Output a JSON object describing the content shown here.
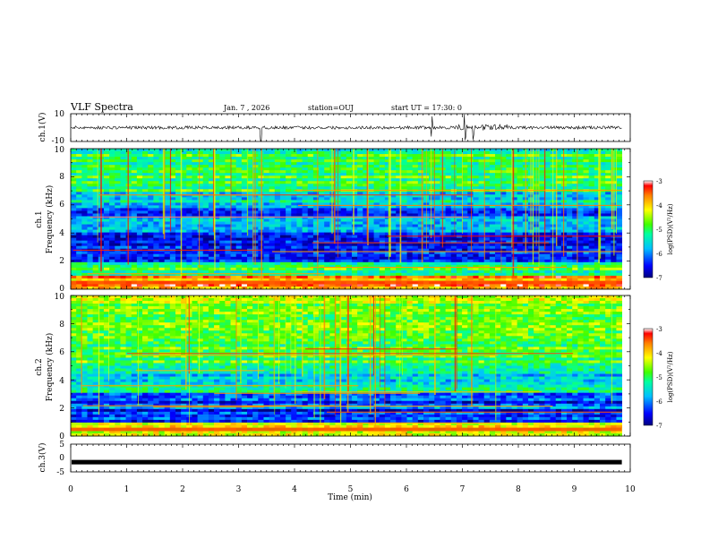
{
  "header": {
    "title": "VLF Spectra",
    "date": "Jan. 7 , 2026",
    "station": "station=OUJ",
    "start_ut": "start UT = 17:30: 0"
  },
  "colors": {
    "spectrum_low": "#000080",
    "spectrum_mid": "#00ff40",
    "spectrum_high": "#ff0000",
    "trace": "#000000"
  },
  "chart_data": [
    {
      "type": "line",
      "name": "ch1-waveform",
      "ylabel": "ch.1(V)",
      "ylim": [
        -10,
        10
      ],
      "y_ticklabels": [
        "10",
        "-10"
      ],
      "xlim": [
        0,
        10
      ],
      "baseline": 0,
      "spikes_at_min": [
        3.4,
        6.45,
        7.05,
        7.2
      ]
    },
    {
      "type": "heatmap",
      "name": "ch1-spectrogram",
      "ylabel": [
        "ch.1",
        "Frequency (kHz)"
      ],
      "ylim": [
        0,
        10
      ],
      "y_ticklabels": [
        "0",
        "2",
        "4",
        "6",
        "8",
        "10"
      ],
      "xlim": [
        0,
        10
      ],
      "freq_bands_khz": [
        0,
        1,
        2,
        3,
        4,
        5,
        6,
        7,
        8,
        9,
        10
      ],
      "log_psd_profile": [
        -3.6,
        -5.0,
        -6.6,
        -6.4,
        -5.6,
        -6.1,
        -5.6,
        -5.0,
        -5.0,
        -5.1
      ],
      "colorbar": {
        "label": "log(PSD)(V²/Hz)",
        "range": [
          -7,
          -3
        ],
        "ticklabels": [
          "-3",
          "-4",
          "-5",
          "-6",
          "-7"
        ]
      }
    },
    {
      "type": "heatmap",
      "name": "ch2-spectrogram",
      "ylabel": [
        "ch.2",
        "Frequency (kHz)"
      ],
      "ylim": [
        0,
        10
      ],
      "y_ticklabels": [
        "0",
        "2",
        "4",
        "6",
        "8",
        "10"
      ],
      "xlim": [
        0,
        10
      ],
      "freq_bands_khz": [
        0,
        1,
        2,
        3,
        4,
        5,
        6,
        7,
        8,
        9,
        10
      ],
      "log_psd_profile": [
        -4.2,
        -6.5,
        -6.2,
        -5.5,
        -5.6,
        -4.9,
        -4.8,
        -4.7,
        -4.7,
        -4.7
      ],
      "colorbar": {
        "label": "log(PSD)(V²/Hz)",
        "range": [
          -7,
          -3
        ],
        "ticklabels": [
          "-3",
          "-4",
          "-5",
          "-6",
          "-7"
        ]
      }
    },
    {
      "type": "line",
      "name": "ch3-waveform",
      "ylabel": "ch.3(V)",
      "ylim": [
        -5,
        5
      ],
      "y_ticklabels": [
        "5",
        "0",
        "-5"
      ],
      "xlim": [
        0,
        10
      ],
      "constant_value": -1.5
    }
  ],
  "x_axis": {
    "label": "Time (min)",
    "ticklabels": [
      "0",
      "1",
      "2",
      "3",
      "4",
      "5",
      "6",
      "7",
      "8",
      "9",
      "10"
    ],
    "xlim": [
      0,
      10
    ],
    "data_end_min": 9.85
  }
}
